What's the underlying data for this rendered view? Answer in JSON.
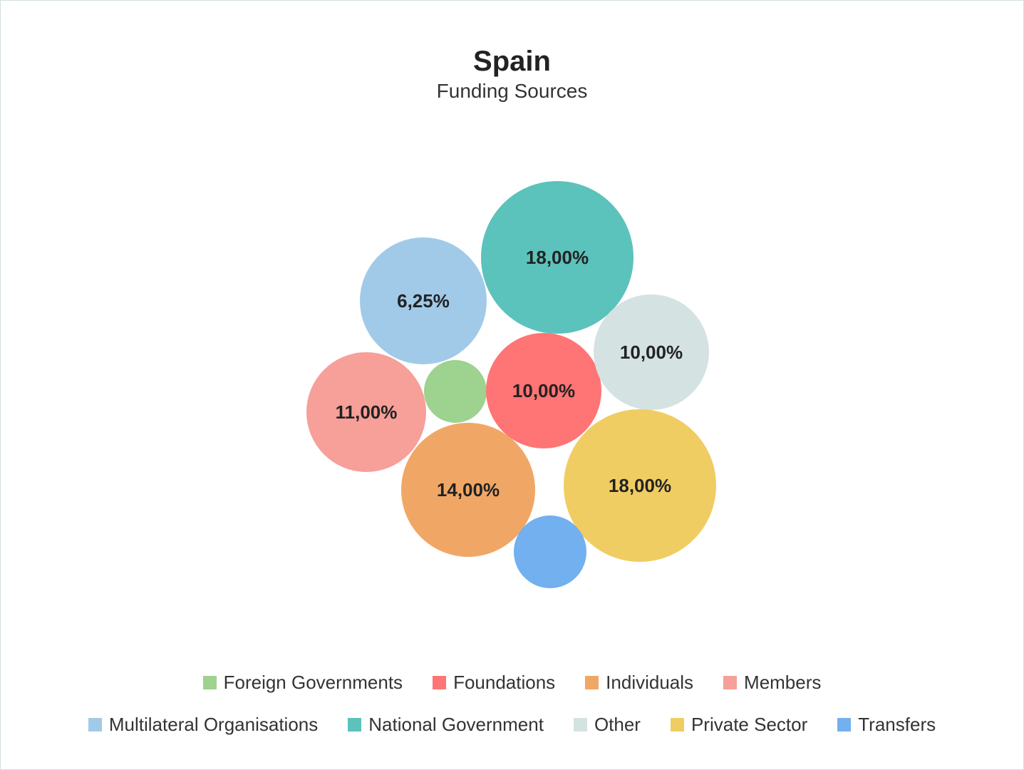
{
  "chart_data": {
    "type": "bubble",
    "title": "Spain",
    "subtitle": "Funding Sources",
    "legend_position": "bottom",
    "series": [
      {
        "name": "Foreign Governments",
        "value": null,
        "label": "",
        "color": "#9dd28f"
      },
      {
        "name": "Foundations",
        "value": 10.0,
        "label": "10,00%",
        "color": "#ff7474"
      },
      {
        "name": "Individuals",
        "value": 14.0,
        "label": "14,00%",
        "color": "#f0a766"
      },
      {
        "name": "Members",
        "value": 11.0,
        "label": "11,00%",
        "color": "#f79f99"
      },
      {
        "name": "Multilateral Organisations",
        "value": 6.25,
        "label": "6,25%",
        "color": "#a1cae8"
      },
      {
        "name": "National Government",
        "value": 18.0,
        "label": "18,00%",
        "color": "#5cc2bc"
      },
      {
        "name": "Other",
        "value": 10.0,
        "label": "10,00%",
        "color": "#d4e2e1"
      },
      {
        "name": "Private Sector",
        "value": 18.0,
        "label": "18,00%",
        "color": "#f0cd63"
      },
      {
        "name": "Transfers",
        "value": null,
        "label": "",
        "color": "#72b0ef"
      }
    ]
  }
}
